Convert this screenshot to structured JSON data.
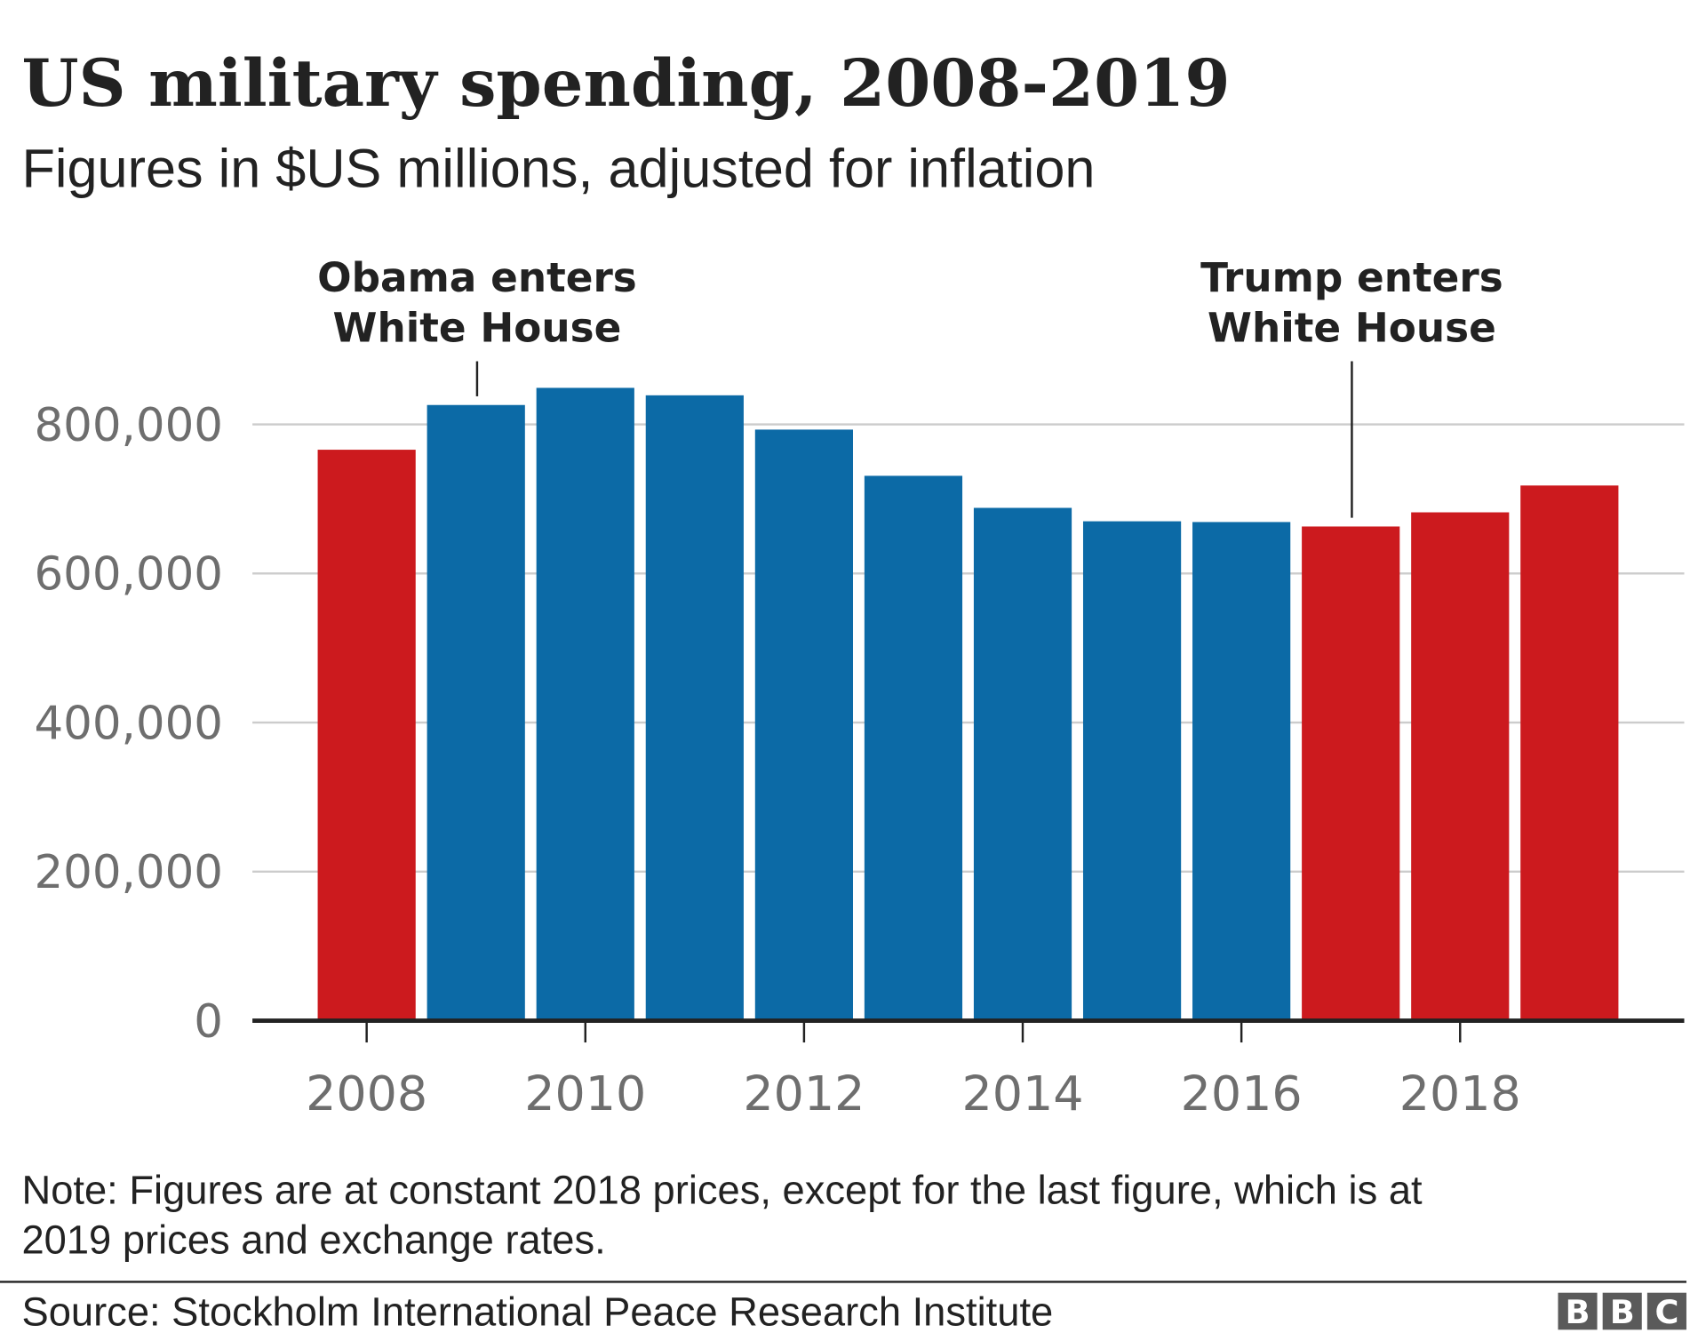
{
  "chart_data": {
    "type": "bar",
    "title": "US military spending, 2008-2019",
    "subtitle": "Figures in $US millions, adjusted for inflation",
    "categories": [
      "2008",
      "2009",
      "2010",
      "2011",
      "2012",
      "2013",
      "2014",
      "2015",
      "2016",
      "2017",
      "2018",
      "2019"
    ],
    "values": [
      766000,
      826000,
      849000,
      839000,
      793000,
      731000,
      688000,
      670000,
      669000,
      663000,
      682000,
      718000
    ],
    "bar_colors": [
      "#cc1a1e",
      "#0c6aa6",
      "#0c6aa6",
      "#0c6aa6",
      "#0c6aa6",
      "#0c6aa6",
      "#0c6aa6",
      "#0c6aa6",
      "#0c6aa6",
      "#cc1a1e",
      "#cc1a1e",
      "#cc1a1e"
    ],
    "ylim": [
      0,
      800000
    ],
    "yticks": [
      0,
      200000,
      400000,
      600000,
      800000
    ],
    "ytick_labels": [
      "0",
      "200,000",
      "400,000",
      "600,000",
      "800,000"
    ],
    "xtick_labels": [
      "2008",
      "2010",
      "2012",
      "2014",
      "2016",
      "2018"
    ],
    "grid": true,
    "xlabel": "",
    "ylabel": "",
    "annotations": [
      {
        "lines": [
          "Obama enters",
          "White House"
        ],
        "year": "2009"
      },
      {
        "lines": [
          "Trump enters",
          "White House"
        ],
        "year": "2017"
      }
    ]
  },
  "note": [
    "Note: Figures are at constant 2018 prices, except for the last figure, which is at",
    "2019 prices and exchange rates."
  ],
  "source": "Source: Stockholm International Peace Research Institute",
  "logo": [
    "B",
    "B",
    "C"
  ]
}
